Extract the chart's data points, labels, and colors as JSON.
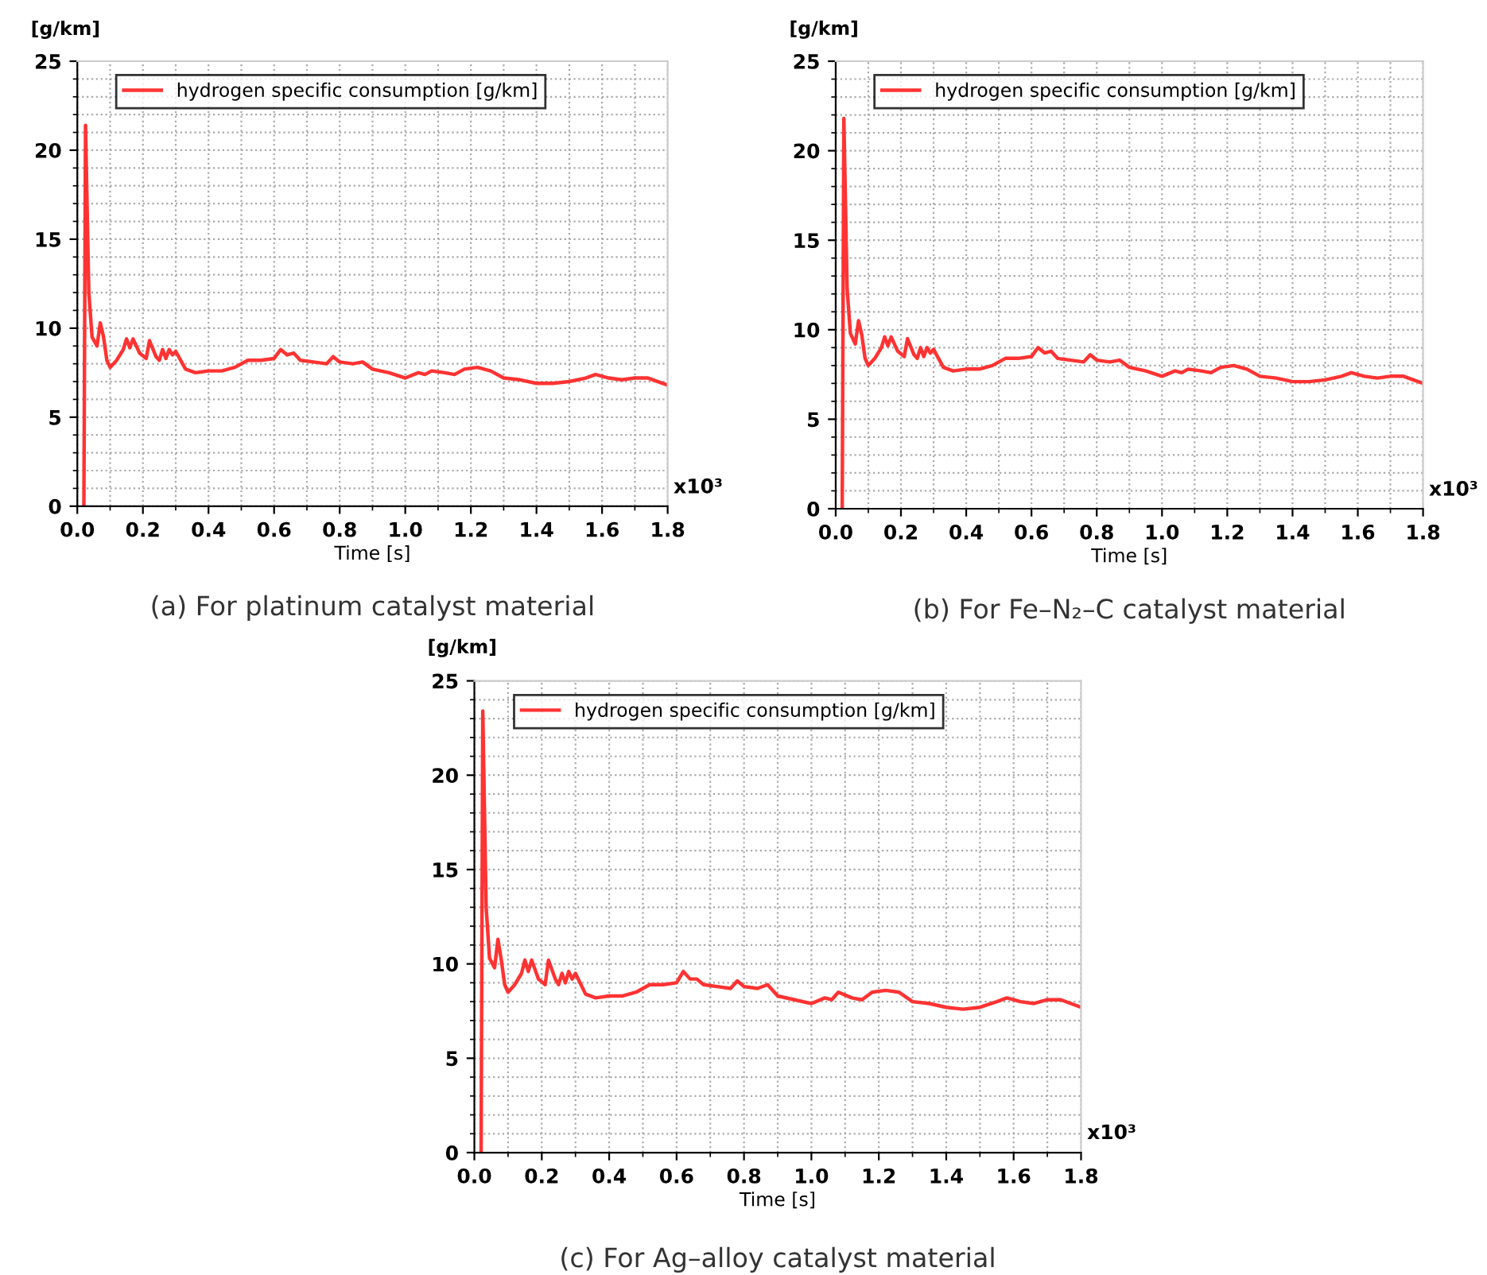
{
  "chart_data": [
    {
      "type": "line",
      "title": "(a) For platinum catalyst material",
      "xlabel": "Time [s]",
      "ylabel": "[g/km]",
      "annotations": [
        "x10³"
      ],
      "xlim": [
        0,
        1.8
      ],
      "ylim": [
        0,
        25
      ],
      "xticks": [
        {
          "value": 0,
          "label": "0.0"
        },
        {
          "value": 0.2,
          "label": "0.2"
        },
        {
          "value": 0.4,
          "label": "0.4"
        },
        {
          "value": 0.6,
          "label": "0.6"
        },
        {
          "value": 0.8,
          "label": "0.8"
        },
        {
          "value": 1.0,
          "label": "1.0"
        },
        {
          "value": 1.2,
          "label": "1.2"
        },
        {
          "value": 1.4,
          "label": "1.4"
        },
        {
          "value": 1.6,
          "label": "1.6"
        },
        {
          "value": 1.8,
          "label": "1.8"
        }
      ],
      "yticks": [
        0,
        5,
        10,
        15,
        20,
        25
      ],
      "grid": true,
      "legend": "top left",
      "line_style": "solid",
      "marker": "none",
      "x": [
        0.02,
        0.025,
        0.035,
        0.045,
        0.06,
        0.07,
        0.08,
        0.09,
        0.1,
        0.12,
        0.14,
        0.15,
        0.16,
        0.17,
        0.19,
        0.21,
        0.22,
        0.24,
        0.25,
        0.26,
        0.27,
        0.28,
        0.29,
        0.3,
        0.33,
        0.36,
        0.4,
        0.44,
        0.48,
        0.52,
        0.56,
        0.6,
        0.62,
        0.64,
        0.66,
        0.68,
        0.72,
        0.76,
        0.78,
        0.8,
        0.84,
        0.87,
        0.9,
        0.95,
        1.0,
        1.04,
        1.06,
        1.08,
        1.12,
        1.15,
        1.18,
        1.22,
        1.26,
        1.3,
        1.35,
        1.4,
        1.45,
        1.5,
        1.55,
        1.58,
        1.62,
        1.66,
        1.7,
        1.74,
        1.77,
        1.8
      ],
      "series": [
        {
          "name": "hydrogen specific consumption [g/km]",
          "color": "#ff3333",
          "values": [
            0,
            21.4,
            12,
            9.5,
            9.0,
            10.3,
            9.5,
            8.2,
            7.8,
            8.2,
            8.8,
            9.4,
            8.9,
            9.4,
            8.6,
            8.3,
            9.3,
            8.4,
            8.2,
            8.8,
            8.3,
            8.8,
            8.5,
            8.7,
            7.7,
            7.5,
            7.6,
            7.6,
            7.8,
            8.2,
            8.2,
            8.3,
            8.8,
            8.5,
            8.6,
            8.2,
            8.1,
            8.0,
            8.4,
            8.1,
            8.0,
            8.1,
            7.7,
            7.5,
            7.2,
            7.5,
            7.4,
            7.6,
            7.5,
            7.4,
            7.7,
            7.8,
            7.6,
            7.2,
            7.1,
            6.9,
            6.9,
            7.0,
            7.2,
            7.4,
            7.2,
            7.1,
            7.2,
            7.2,
            7.0,
            6.8
          ]
        }
      ]
    },
    {
      "type": "line",
      "title": "(b) For Fe–N₂–C catalyst material",
      "xlabel": "Time [s]",
      "ylabel": "[g/km]",
      "annotations": [
        "x10³"
      ],
      "xlim": [
        0,
        1.8
      ],
      "ylim": [
        0,
        25
      ],
      "xticks": [
        {
          "value": 0,
          "label": "0.0"
        },
        {
          "value": 0.2,
          "label": "0.2"
        },
        {
          "value": 0.4,
          "label": "0.4"
        },
        {
          "value": 0.6,
          "label": "0.6"
        },
        {
          "value": 0.8,
          "label": "0.8"
        },
        {
          "value": 1.0,
          "label": "1.0"
        },
        {
          "value": 1.2,
          "label": "1.2"
        },
        {
          "value": 1.4,
          "label": "1.4"
        },
        {
          "value": 1.6,
          "label": "1.6"
        },
        {
          "value": 1.8,
          "label": "1.8"
        }
      ],
      "yticks": [
        0,
        5,
        10,
        15,
        20,
        25
      ],
      "grid": true,
      "legend": "top left",
      "line_style": "solid",
      "marker": "none",
      "x": [
        0.02,
        0.025,
        0.035,
        0.045,
        0.06,
        0.07,
        0.08,
        0.09,
        0.1,
        0.12,
        0.14,
        0.15,
        0.16,
        0.17,
        0.19,
        0.21,
        0.22,
        0.24,
        0.25,
        0.26,
        0.27,
        0.28,
        0.29,
        0.3,
        0.33,
        0.36,
        0.4,
        0.44,
        0.48,
        0.52,
        0.56,
        0.6,
        0.62,
        0.64,
        0.66,
        0.68,
        0.72,
        0.76,
        0.78,
        0.8,
        0.84,
        0.87,
        0.9,
        0.95,
        1.0,
        1.04,
        1.06,
        1.08,
        1.12,
        1.15,
        1.18,
        1.22,
        1.26,
        1.3,
        1.35,
        1.4,
        1.45,
        1.5,
        1.55,
        1.58,
        1.62,
        1.66,
        1.7,
        1.74,
        1.77,
        1.8
      ],
      "series": [
        {
          "name": "hydrogen specific consumption [g/km]",
          "color": "#ff3333",
          "values": [
            0,
            21.8,
            12.3,
            9.8,
            9.2,
            10.5,
            9.7,
            8.4,
            8.0,
            8.4,
            9.0,
            9.6,
            9.1,
            9.6,
            8.8,
            8.5,
            9.5,
            8.6,
            8.4,
            9.0,
            8.5,
            9.0,
            8.7,
            8.9,
            7.9,
            7.7,
            7.8,
            7.8,
            8.0,
            8.4,
            8.4,
            8.5,
            9.0,
            8.7,
            8.8,
            8.4,
            8.3,
            8.2,
            8.6,
            8.3,
            8.2,
            8.3,
            7.9,
            7.7,
            7.4,
            7.7,
            7.6,
            7.8,
            7.7,
            7.6,
            7.9,
            8.0,
            7.8,
            7.4,
            7.3,
            7.1,
            7.1,
            7.2,
            7.4,
            7.6,
            7.4,
            7.3,
            7.4,
            7.4,
            7.2,
            7.0
          ]
        }
      ]
    },
    {
      "type": "line",
      "title": "(c) For Ag–alloy catalyst material",
      "xlabel": "Time [s]",
      "ylabel": "[g/km]",
      "annotations": [
        "x10³"
      ],
      "xlim": [
        0,
        1.8
      ],
      "ylim": [
        0,
        25
      ],
      "xticks": [
        {
          "value": 0,
          "label": "0.0"
        },
        {
          "value": 0.2,
          "label": "0.2"
        },
        {
          "value": 0.4,
          "label": "0.4"
        },
        {
          "value": 0.6,
          "label": "0.6"
        },
        {
          "value": 0.8,
          "label": "0.8"
        },
        {
          "value": 1.0,
          "label": "1.0"
        },
        {
          "value": 1.2,
          "label": "1.2"
        },
        {
          "value": 1.4,
          "label": "1.4"
        },
        {
          "value": 1.6,
          "label": "1.6"
        },
        {
          "value": 1.8,
          "label": "1.8"
        }
      ],
      "yticks": [
        0,
        5,
        10,
        15,
        20,
        25
      ],
      "grid": true,
      "legend": "top left",
      "line_style": "solid",
      "marker": "none",
      "x": [
        0.02,
        0.025,
        0.035,
        0.045,
        0.06,
        0.07,
        0.08,
        0.09,
        0.1,
        0.12,
        0.14,
        0.15,
        0.16,
        0.17,
        0.19,
        0.21,
        0.22,
        0.24,
        0.25,
        0.26,
        0.27,
        0.28,
        0.29,
        0.3,
        0.33,
        0.36,
        0.4,
        0.44,
        0.48,
        0.52,
        0.56,
        0.6,
        0.62,
        0.64,
        0.66,
        0.68,
        0.72,
        0.76,
        0.78,
        0.8,
        0.84,
        0.87,
        0.9,
        0.95,
        1.0,
        1.04,
        1.06,
        1.08,
        1.12,
        1.15,
        1.18,
        1.22,
        1.26,
        1.3,
        1.35,
        1.4,
        1.45,
        1.5,
        1.55,
        1.58,
        1.62,
        1.66,
        1.7,
        1.74,
        1.77,
        1.8
      ],
      "series": [
        {
          "name": "hydrogen specific consumption [g/km]",
          "color": "#ff3333",
          "values": [
            0,
            23.4,
            13,
            10.3,
            9.8,
            11.3,
            10.2,
            8.9,
            8.5,
            8.9,
            9.5,
            10.2,
            9.6,
            10.2,
            9.2,
            8.9,
            10.2,
            9.2,
            8.9,
            9.5,
            9.0,
            9.6,
            9.2,
            9.5,
            8.4,
            8.2,
            8.3,
            8.3,
            8.5,
            8.9,
            8.9,
            9.0,
            9.6,
            9.2,
            9.2,
            8.9,
            8.8,
            8.7,
            9.1,
            8.8,
            8.7,
            8.9,
            8.3,
            8.1,
            7.9,
            8.2,
            8.1,
            8.5,
            8.2,
            8.1,
            8.5,
            8.6,
            8.5,
            8.0,
            7.9,
            7.7,
            7.6,
            7.7,
            8.0,
            8.2,
            8.0,
            7.9,
            8.1,
            8.1,
            7.9,
            7.7
          ]
        }
      ]
    }
  ]
}
